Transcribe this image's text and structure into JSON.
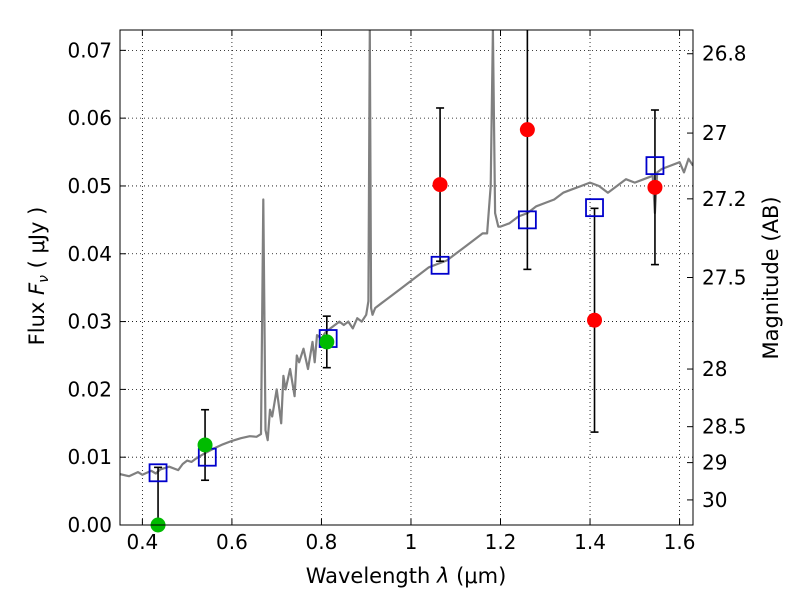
{
  "chart_data": {
    "type": "scatter",
    "xlabel_text": "Wavelength ",
    "xlabel_symbol": "λ",
    "xlabel_unit": " (μm)",
    "ylabel_text": "Flux ",
    "ylabel_symbol": "F",
    "ylabel_sub": "ν",
    "ylabel_unit": " ( μJy )",
    "y2label": "Magnitude (AB)",
    "xlim": [
      0.35,
      1.63
    ],
    "ylim": [
      0.0,
      0.073
    ],
    "xticks": [
      0.4,
      0.6,
      0.8,
      1.0,
      1.2,
      1.4,
      1.6
    ],
    "xtick_labels": [
      "0.4",
      "0.6",
      "0.8",
      "1",
      "1.2",
      "1.4",
      "1.6"
    ],
    "yticks": [
      0.0,
      0.01,
      0.02,
      0.03,
      0.04,
      0.05,
      0.06,
      0.07
    ],
    "ytick_labels": [
      "0.00",
      "0.01",
      "0.02",
      "0.03",
      "0.04",
      "0.05",
      "0.06",
      "0.07"
    ],
    "y2ticks": [
      {
        "label": "26.8",
        "flux": 0.0695
      },
      {
        "label": "27",
        "flux": 0.0578
      },
      {
        "label": "27.2",
        "flux": 0.0481
      },
      {
        "label": "27.5",
        "flux": 0.0365
      },
      {
        "label": "28",
        "flux": 0.023
      },
      {
        "label": "28.5",
        "flux": 0.0145
      },
      {
        "label": "29",
        "flux": 0.0092
      },
      {
        "label": "30",
        "flux": 0.0037
      }
    ],
    "grid": true,
    "colors": {
      "spectrum": "#808080",
      "model_points": "#0000cc",
      "detections": "#ff0000",
      "detections_green": "#00bb00",
      "errorbars": "#000000"
    },
    "spectrum": {
      "x": [
        0.35,
        0.37,
        0.39,
        0.4,
        0.42,
        0.43,
        0.44,
        0.46,
        0.48,
        0.49,
        0.5,
        0.51,
        0.52,
        0.53,
        0.54,
        0.56,
        0.58,
        0.6,
        0.62,
        0.64,
        0.655,
        0.665,
        0.67,
        0.675,
        0.68,
        0.685,
        0.69,
        0.7,
        0.71,
        0.715,
        0.72,
        0.73,
        0.74,
        0.745,
        0.75,
        0.76,
        0.77,
        0.78,
        0.785,
        0.79,
        0.8,
        0.81,
        0.82,
        0.83,
        0.84,
        0.85,
        0.86,
        0.87,
        0.88,
        0.89,
        0.9,
        0.905,
        0.908,
        0.911,
        0.914,
        0.92,
        0.94,
        0.96,
        0.98,
        1.0,
        1.02,
        1.04,
        1.06,
        1.08,
        1.1,
        1.12,
        1.14,
        1.16,
        1.17,
        1.178,
        1.183,
        1.188,
        1.195,
        1.2,
        1.22,
        1.24,
        1.26,
        1.28,
        1.3,
        1.32,
        1.34,
        1.36,
        1.38,
        1.4,
        1.42,
        1.44,
        1.46,
        1.48,
        1.5,
        1.52,
        1.54,
        1.545,
        1.55,
        1.56,
        1.58,
        1.6,
        1.61,
        1.62,
        1.63
      ],
      "y": [
        0.0075,
        0.0072,
        0.0078,
        0.0074,
        0.008,
        0.0076,
        0.0082,
        0.0086,
        0.0081,
        0.009,
        0.0095,
        0.0093,
        0.0098,
        0.0102,
        0.0106,
        0.0113,
        0.0119,
        0.0124,
        0.0128,
        0.0131,
        0.013,
        0.0134,
        0.048,
        0.014,
        0.0125,
        0.017,
        0.016,
        0.02,
        0.015,
        0.022,
        0.02,
        0.023,
        0.019,
        0.025,
        0.024,
        0.026,
        0.023,
        0.027,
        0.024,
        0.028,
        0.0275,
        0.0285,
        0.029,
        0.0295,
        0.03,
        0.0295,
        0.03,
        0.029,
        0.0305,
        0.03,
        0.031,
        0.033,
        0.073,
        0.032,
        0.031,
        0.032,
        0.033,
        0.034,
        0.035,
        0.036,
        0.037,
        0.038,
        0.0385,
        0.039,
        0.04,
        0.041,
        0.042,
        0.043,
        0.043,
        0.05,
        0.073,
        0.046,
        0.044,
        0.044,
        0.0445,
        0.0455,
        0.046,
        0.047,
        0.0475,
        0.048,
        0.049,
        0.0495,
        0.05,
        0.0505,
        0.05,
        0.049,
        0.05,
        0.051,
        0.0505,
        0.051,
        0.0515,
        0.046,
        0.052,
        0.0525,
        0.053,
        0.0535,
        0.052,
        0.054,
        0.053
      ]
    },
    "model_points": [
      {
        "x": 0.435,
        "y": 0.0077
      },
      {
        "x": 0.545,
        "y": 0.01
      },
      {
        "x": 0.815,
        "y": 0.0275
      },
      {
        "x": 1.065,
        "y": 0.0383
      },
      {
        "x": 1.26,
        "y": 0.045
      },
      {
        "x": 1.41,
        "y": 0.0468
      },
      {
        "x": 1.545,
        "y": 0.053
      }
    ],
    "detections": [
      {
        "x": 0.435,
        "y": 0.0,
        "err": 0.0085,
        "color": "#00bb00"
      },
      {
        "x": 0.54,
        "y": 0.0118,
        "err": 0.0052,
        "color": "#00bb00"
      },
      {
        "x": 0.812,
        "y": 0.027,
        "err": 0.0038,
        "color": "#00bb00"
      },
      {
        "x": 1.065,
        "y": 0.0502,
        "err": 0.0113,
        "color": "#ff0000"
      },
      {
        "x": 1.26,
        "y": 0.0583,
        "err": 0.0206,
        "color": "#ff0000"
      },
      {
        "x": 1.41,
        "y": 0.0302,
        "err": 0.0165,
        "color": "#ff0000"
      },
      {
        "x": 1.545,
        "y": 0.0498,
        "err": 0.0114,
        "color": "#ff0000"
      }
    ]
  }
}
